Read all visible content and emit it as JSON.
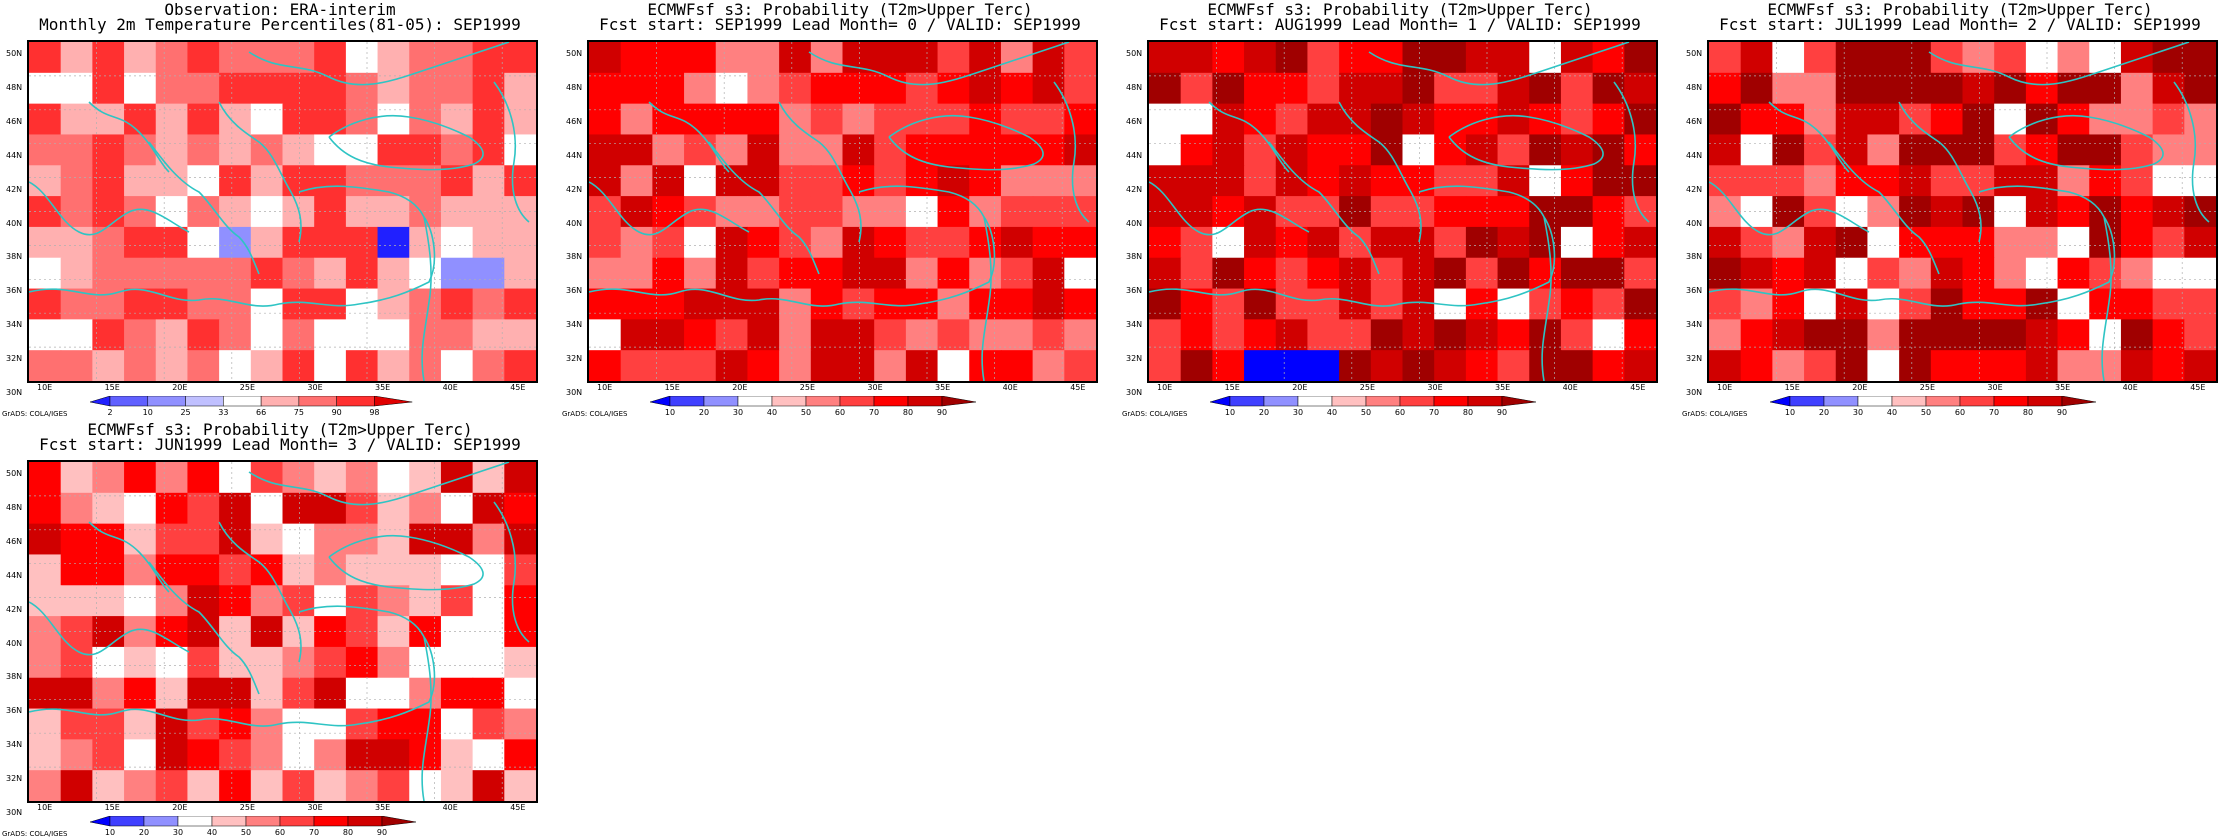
{
  "panels": [
    {
      "id": "obs",
      "title1": "Observation: ERA-interim",
      "title2": "Monthly 2m Temperature Percentiles(81-05): SEP1999",
      "colorbar_labels": [
        "2",
        "10",
        "25",
        "33",
        "66",
        "75",
        "90",
        "98"
      ],
      "credit": "GrADS: COLA/IGES"
    },
    {
      "id": "lead0",
      "title1": "ECMWFsf s3: Probability (T2m>Upper Terc)",
      "title2": "Fcst start: SEP1999   Lead Month= 0 / VALID: SEP1999",
      "colorbar_labels": [
        "10",
        "20",
        "30",
        "40",
        "50",
        "60",
        "70",
        "80",
        "90"
      ],
      "credit": "GrADS: COLA/IGES"
    },
    {
      "id": "lead1",
      "title1": "ECMWFsf s3: Probability (T2m>Upper Terc)",
      "title2": "Fcst start: AUG1999   Lead Month= 1 / VALID: SEP1999",
      "colorbar_labels": [
        "10",
        "20",
        "30",
        "40",
        "50",
        "60",
        "70",
        "80",
        "90"
      ],
      "credit": "GrADS: COLA/IGES"
    },
    {
      "id": "lead2",
      "title1": "ECMWFsf s3: Probability (T2m>Upper Terc)",
      "title2": "Fcst start: JUL1999   Lead Month= 2 / VALID: SEP1999",
      "colorbar_labels": [
        "10",
        "20",
        "30",
        "40",
        "50",
        "60",
        "70",
        "80",
        "90"
      ],
      "credit": "GrADS: COLA/IGES"
    },
    {
      "id": "lead3",
      "title1": "ECMWFsf s3: Probability (T2m>Upper Terc)",
      "title2": "Fcst start: JUN1999   Lead Month= 3 / VALID: SEP1999",
      "colorbar_labels": [
        "10",
        "20",
        "30",
        "40",
        "50",
        "60",
        "70",
        "80",
        "90"
      ],
      "credit": "GrADS: COLA/IGES"
    }
  ],
  "axes": {
    "lat_labels": [
      "50N",
      "48N",
      "46N",
      "44N",
      "42N",
      "40N",
      "38N",
      "36N",
      "34N",
      "32N",
      "30N"
    ],
    "lon_labels": [
      "10E",
      "15E",
      "20E",
      "25E",
      "30E",
      "35E",
      "40E",
      "45E"
    ]
  },
  "colors": {
    "obs_scale": [
      "#2020ff",
      "#6060ff",
      "#9090ff",
      "#c0c0ff",
      "#ffffff",
      "#ffb0b0",
      "#ff7070",
      "#ff3030",
      "#e00000"
    ],
    "prob_scale": [
      "#0000ff",
      "#4040ff",
      "#9090ff",
      "#ffffff",
      "#ffc0c0",
      "#ff8080",
      "#ff4040",
      "#ff0000",
      "#d00000",
      "#a00000"
    ],
    "coast": "#2ec4c4",
    "grid": "#b0b0b0"
  }
}
